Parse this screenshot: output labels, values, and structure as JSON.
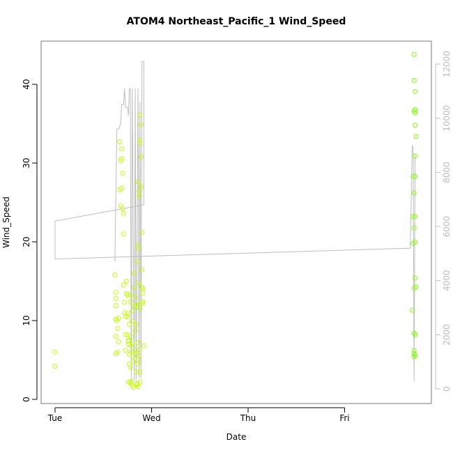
{
  "chart_data": {
    "type": "scatter",
    "title": "ATOM4 Northeast_Pacific_1 Wind_Speed",
    "xlabel": "Date",
    "ylabel": "Wind_Speed",
    "x_tick_labels": [
      "Tue",
      "Wed",
      "Thu",
      "Fri"
    ],
    "xlim_days": [
      0,
      3.9
    ],
    "ylim": [
      0,
      44
    ],
    "y_ticks": [
      0,
      10,
      20,
      30,
      40
    ],
    "y2_ticks": [
      0,
      2000,
      4000,
      6000,
      8000,
      10000,
      12000
    ],
    "y2lim": [
      0,
      12500
    ],
    "grid": false,
    "colors": {
      "points": "#bfff00",
      "points_late": "#7fff00",
      "secondary_line": "#bdbdbd",
      "axes": "#000000",
      "box": "#777777"
    },
    "series": [
      {
        "kind": "points",
        "points": [
          [
            0.0,
            6.0
          ],
          [
            0.0,
            4.2
          ],
          [
            0.62,
            15.8
          ],
          [
            0.63,
            13.6
          ],
          [
            0.63,
            12.8
          ],
          [
            0.63,
            11.9
          ],
          [
            0.63,
            10.2
          ],
          [
            0.63,
            8.0
          ],
          [
            0.63,
            5.8
          ],
          [
            0.64,
            10.0
          ],
          [
            0.65,
            9.0
          ],
          [
            0.65,
            6.0
          ],
          [
            0.66,
            7.3
          ],
          [
            0.66,
            10.3
          ],
          [
            0.67,
            32.7
          ],
          [
            0.67,
            26.6
          ],
          [
            0.68,
            24.6
          ],
          [
            0.68,
            30.3
          ],
          [
            0.69,
            31.8
          ],
          [
            0.69,
            30.6
          ],
          [
            0.69,
            26.8
          ],
          [
            0.7,
            28.7
          ],
          [
            0.7,
            24.2
          ],
          [
            0.71,
            23.6
          ],
          [
            0.71,
            21.0
          ],
          [
            0.71,
            14.5
          ],
          [
            0.72,
            12.3
          ],
          [
            0.73,
            10.5
          ],
          [
            0.73,
            8.2
          ],
          [
            0.73,
            6.2
          ],
          [
            0.72,
            11.0
          ],
          [
            0.74,
            15.0
          ],
          [
            0.74,
            13.4
          ],
          [
            0.75,
            13.2
          ],
          [
            0.75,
            10.9
          ],
          [
            0.75,
            10.5
          ],
          [
            0.75,
            8.2
          ],
          [
            0.76,
            7.5
          ],
          [
            0.76,
            7.4
          ],
          [
            0.76,
            7.0
          ],
          [
            0.77,
            9.5
          ],
          [
            0.77,
            5.7
          ],
          [
            0.77,
            4.5
          ],
          [
            0.78,
            4.0
          ],
          [
            0.78,
            12.4
          ],
          [
            0.78,
            13.3
          ],
          [
            0.79,
            8.0
          ],
          [
            0.79,
            6.8
          ],
          [
            0.79,
            6.0
          ],
          [
            0.8,
            11.2
          ],
          [
            0.8,
            9.9
          ],
          [
            0.8,
            7.1
          ],
          [
            0.81,
            5.5
          ],
          [
            0.81,
            4.8
          ],
          [
            0.82,
            14.2
          ],
          [
            0.82,
            16.0
          ],
          [
            0.83,
            13.0
          ],
          [
            0.83,
            8.7
          ],
          [
            0.83,
            6.2
          ],
          [
            0.84,
            5.8
          ],
          [
            0.84,
            3.5
          ],
          [
            0.85,
            2.0
          ],
          [
            0.76,
            2.2
          ],
          [
            0.78,
            2.1
          ],
          [
            0.79,
            2.3
          ],
          [
            0.84,
            12.0
          ],
          [
            0.85,
            17.5
          ],
          [
            0.86,
            19.6
          ],
          [
            0.86,
            19.1
          ],
          [
            0.86,
            27.6
          ],
          [
            0.87,
            26.4
          ],
          [
            0.87,
            25.8
          ],
          [
            0.88,
            32.5
          ],
          [
            0.88,
            32.9
          ],
          [
            0.88,
            36.1
          ],
          [
            0.89,
            34.9
          ],
          [
            0.89,
            30.8
          ],
          [
            0.89,
            27.0
          ],
          [
            0.9,
            21.2
          ],
          [
            0.9,
            16.5
          ],
          [
            0.9,
            14.2
          ],
          [
            0.91,
            14.0
          ],
          [
            0.91,
            13.5
          ],
          [
            0.91,
            12.2
          ],
          [
            0.91,
            12.4
          ],
          [
            0.88,
            11.5
          ],
          [
            0.87,
            12.0
          ],
          [
            0.87,
            14.8
          ],
          [
            0.86,
            7.2
          ],
          [
            0.87,
            6.3
          ],
          [
            0.87,
            5.5
          ],
          [
            0.86,
            5.0
          ],
          [
            0.86,
            4.5
          ],
          [
            0.88,
            3.5
          ],
          [
            0.88,
            2.2
          ],
          [
            0.86,
            1.6
          ],
          [
            0.85,
            1.9
          ],
          [
            0.92,
            6.8
          ],
          [
            0.84,
            9.5
          ],
          [
            0.82,
            11.8
          ],
          [
            0.8,
            1.8
          ],
          [
            0.81,
            1.5
          ]
        ]
      },
      {
        "kind": "points",
        "points": [
          [
            3.72,
            43.8
          ],
          [
            3.72,
            40.5
          ],
          [
            3.73,
            39.1
          ],
          [
            3.72,
            36.6
          ],
          [
            3.73,
            36.8
          ],
          [
            3.73,
            36.4
          ],
          [
            3.73,
            34.8
          ],
          [
            3.74,
            33.4
          ],
          [
            3.73,
            30.9
          ],
          [
            3.71,
            28.3
          ],
          [
            3.73,
            28.3
          ],
          [
            3.72,
            26.2
          ],
          [
            3.71,
            23.2
          ],
          [
            3.73,
            23.2
          ],
          [
            3.72,
            21.8
          ],
          [
            3.71,
            19.8
          ],
          [
            3.73,
            20.0
          ],
          [
            3.73,
            15.4
          ],
          [
            3.72,
            14.1
          ],
          [
            3.74,
            14.3
          ],
          [
            3.7,
            11.3
          ],
          [
            3.72,
            8.4
          ],
          [
            3.73,
            8.2
          ],
          [
            3.72,
            6.2
          ],
          [
            3.72,
            5.8
          ],
          [
            3.72,
            5.4
          ],
          [
            3.73,
            5.6
          ]
        ]
      },
      {
        "kind": "line",
        "axis": "secondary",
        "points": [
          [
            0.0,
            6200
          ],
          [
            0.0,
            4800
          ],
          [
            3.68,
            5200
          ],
          [
            3.7,
            9000
          ],
          [
            3.71,
            8900
          ],
          [
            3.72,
            300
          ],
          [
            3.73,
            8700
          ],
          [
            3.73,
            8500
          ]
        ]
      },
      {
        "kind": "line",
        "axis": "secondary",
        "points": [
          [
            0.0,
            6200
          ],
          [
            0.92,
            6800
          ],
          [
            0.92,
            12100
          ],
          [
            0.9,
            12100
          ],
          [
            0.89,
            400
          ],
          [
            0.88,
            10600
          ],
          [
            0.87,
            400
          ],
          [
            0.86,
            11100
          ],
          [
            0.84,
            300
          ],
          [
            0.83,
            11100
          ],
          [
            0.82,
            300
          ],
          [
            0.8,
            11100
          ],
          [
            0.79,
            300
          ],
          [
            0.78,
            11100
          ],
          [
            0.77,
            11100
          ],
          [
            0.76,
            10100
          ],
          [
            0.75,
            10400
          ],
          [
            0.73,
            10400
          ],
          [
            0.72,
            11100
          ],
          [
            0.71,
            10500
          ],
          [
            0.69,
            10500
          ],
          [
            0.68,
            9800
          ],
          [
            0.66,
            9600
          ],
          [
            0.64,
            9600
          ],
          [
            0.62,
            4800
          ],
          [
            0.63,
            4700
          ]
        ]
      }
    ]
  }
}
